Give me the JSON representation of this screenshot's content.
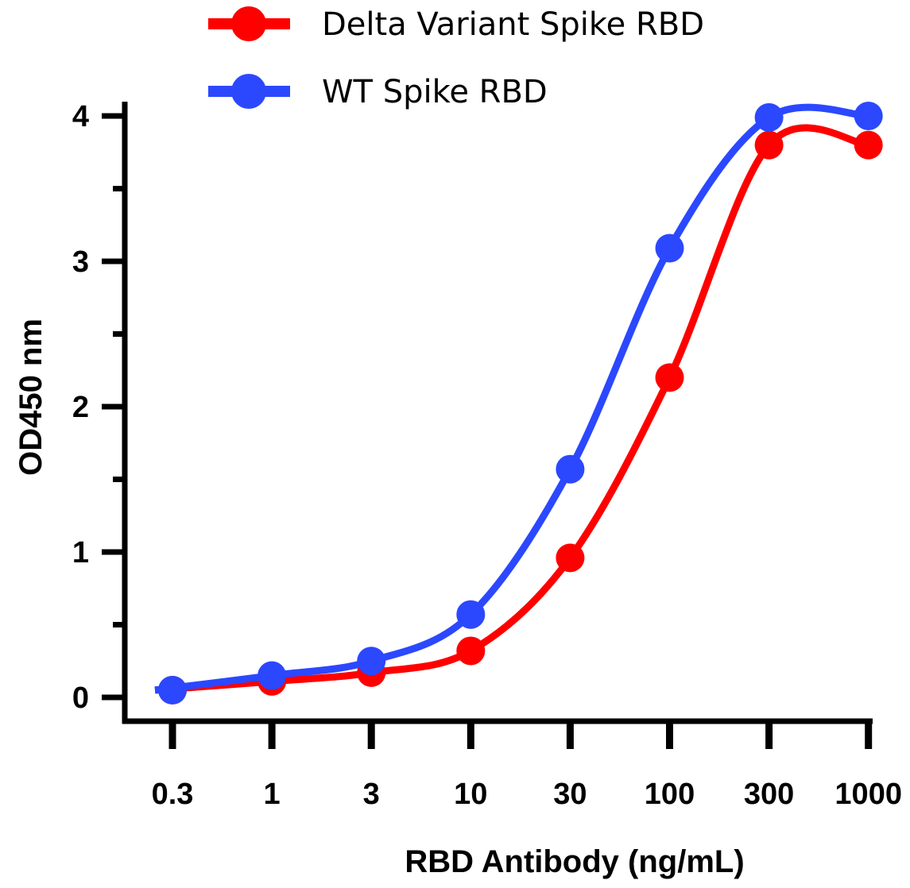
{
  "chart_data": {
    "type": "line",
    "title": "",
    "xlabel": "RBD Antibody (ng/mL)",
    "ylabel": "OD450 nm",
    "x_scale": "log (dilution series, equally spaced)",
    "categories": [
      "0.3",
      "1",
      "3",
      "10",
      "30",
      "100",
      "300",
      "1000"
    ],
    "x": [
      0.3,
      1,
      3,
      10,
      30,
      100,
      300,
      1000
    ],
    "ylim": [
      0,
      4
    ],
    "yticks": [
      "0",
      "1",
      "2",
      "3",
      "4"
    ],
    "grid": false,
    "legend_position": "top",
    "series": [
      {
        "name": "Delta Variant Spike RBD",
        "color": "#ff0000",
        "values": [
          0.05,
          0.11,
          0.17,
          0.32,
          0.96,
          2.2,
          3.8,
          3.8
        ]
      },
      {
        "name": "WT Spike RBD",
        "color": "#2b48ff",
        "values": [
          0.05,
          0.15,
          0.25,
          0.57,
          1.57,
          3.09,
          3.99,
          4.0
        ]
      }
    ]
  }
}
